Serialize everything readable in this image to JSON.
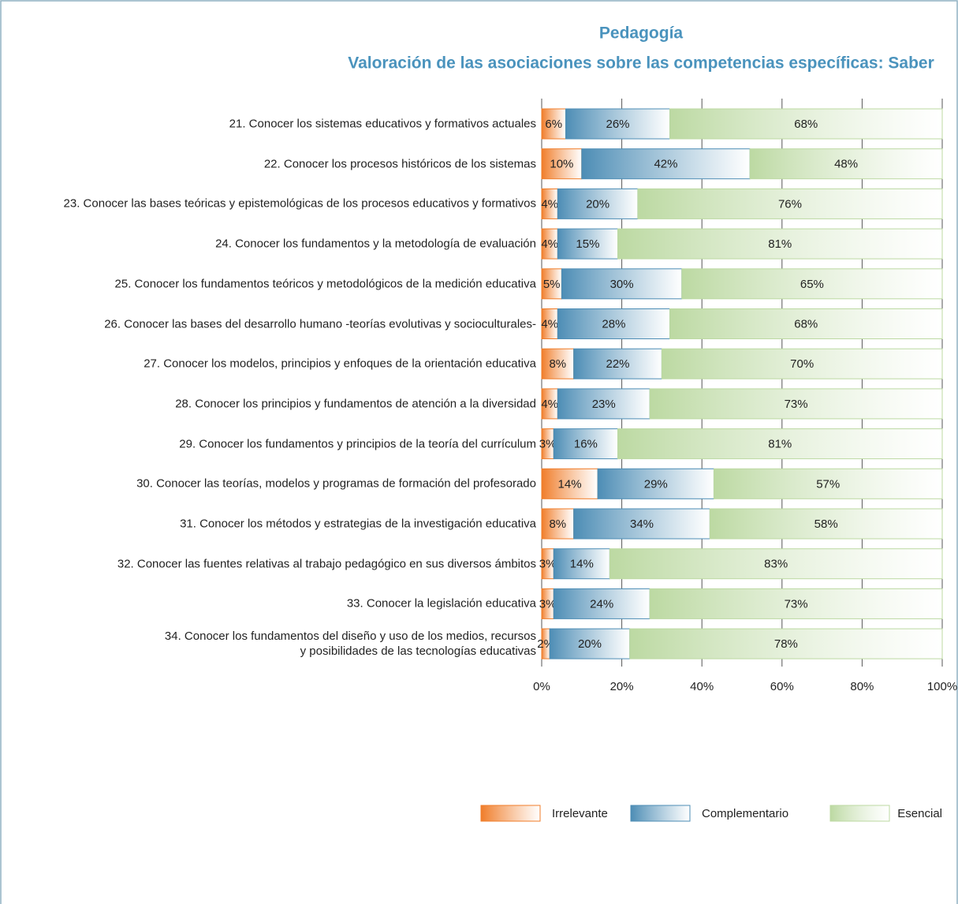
{
  "chart_data": {
    "type": "stacked_bar_horizontal",
    "title": "Pedagogía",
    "subtitle": "Valoración de las asociaciones sobre las competencias específicas: Saber",
    "categories": [
      "21. Conocer los sistemas educativos y formativos actuales",
      "22. Conocer los procesos históricos de los sistemas",
      "23. Conocer las bases teóricas y epistemológicas de los procesos educativos y formativos",
      "24. Conocer los fundamentos y la metodología de evaluación",
      "25. Conocer los fundamentos teóricos y metodológicos de la medición educativa",
      "26. Conocer las bases del desarrollo humano -teorías evolutivas y socioculturales-",
      "27. Conocer los modelos, principios y enfoques de la orientación educativa",
      "28. Conocer los principios y fundamentos de atención a la diversidad",
      "29. Conocer los fundamentos y principios de la teoría del currículum",
      "30. Conocer las teorías, modelos y programas de formación del profesorado",
      "31. Conocer los métodos y estrategias de la investigación educativa",
      "32. Conocer las fuentes relativas al trabajo pedagógico en sus diversos ámbitos",
      "33. Conocer la legislación educativa",
      "34. Conocer los fundamentos del diseño y uso de los medios, recursos\ny posibilidades de las tecnologías educativas"
    ],
    "series": [
      {
        "name": "Irrelevante",
        "color": "#f07d2a",
        "values": [
          6,
          10,
          4,
          4,
          5,
          4,
          8,
          4,
          3,
          14,
          8,
          3,
          3,
          2
        ],
        "value_labels": [
          "6%",
          "10%",
          "4%",
          "4%",
          "5%",
          "4%",
          "8%",
          "4%",
          "3%",
          "14%",
          "8%",
          "3%",
          "3%",
          "2%"
        ]
      },
      {
        "name": "Complementario",
        "color": "#4d8db5",
        "values": [
          26,
          42,
          20,
          15,
          30,
          28,
          22,
          23,
          16,
          29,
          34,
          14,
          24,
          20
        ],
        "value_labels": [
          "26%",
          "42%",
          "20%",
          "15%",
          "30%",
          "28%",
          "22%",
          "23%",
          "16%",
          "29%",
          "34%",
          "14%",
          "24%",
          "20%"
        ]
      },
      {
        "name": "Esencial",
        "color": "#bcd9a2",
        "values": [
          68,
          48,
          76,
          81,
          65,
          68,
          70,
          73,
          81,
          57,
          58,
          83,
          73,
          78
        ],
        "value_labels": [
          "68%",
          "48%",
          "76%",
          "81%",
          "65%",
          "68%",
          "70%",
          "73%",
          "81%",
          "57%",
          "58%",
          "83%",
          "73%",
          "78%"
        ]
      }
    ],
    "xlim": [
      0,
      100
    ],
    "xticks": [
      {
        "value": 0,
        "label": "0%"
      },
      {
        "value": 20,
        "label": "20%"
      },
      {
        "value": 40,
        "label": "40%"
      },
      {
        "value": 60,
        "label": "60%"
      },
      {
        "value": 80,
        "label": "80%"
      },
      {
        "value": 100,
        "label": "100%"
      }
    ],
    "grid": true,
    "legend": "bottom"
  }
}
